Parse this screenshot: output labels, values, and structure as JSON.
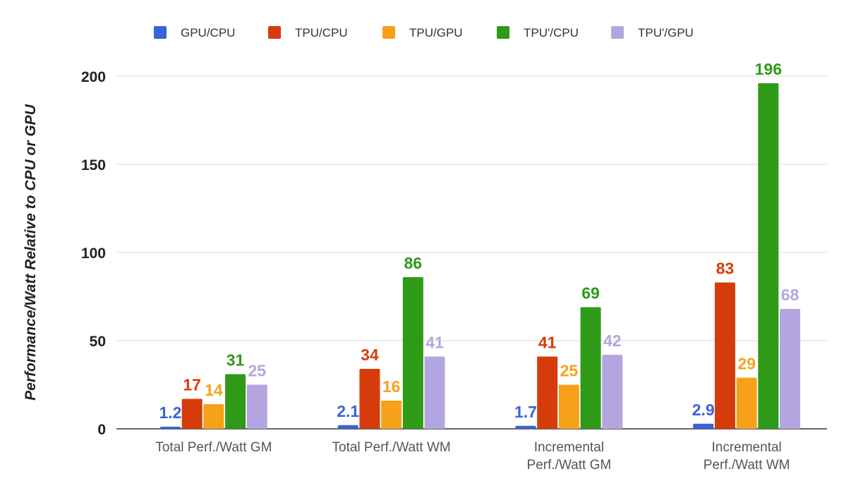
{
  "chart_data": {
    "type": "bar",
    "title": "",
    "xlabel": "",
    "ylabel": "Performance/Watt Relative to CPU or GPU",
    "ylim": [
      0,
      200
    ],
    "yticks": [
      "0",
      "50",
      "100",
      "150",
      "200"
    ],
    "grid": true,
    "legend_position": "top",
    "categories": [
      [
        "Total Perf./Watt GM"
      ],
      [
        "Total Perf./Watt WM"
      ],
      [
        "Incremental",
        "Perf./Watt GM"
      ],
      [
        "Incremental",
        "Perf./Watt WM"
      ]
    ],
    "series": [
      {
        "name": "GPU/CPU",
        "color": "#3b63d3",
        "values": [
          1.2,
          2.1,
          1.7,
          2.9
        ],
        "labels": [
          "1.2",
          "2.1",
          "1.7",
          "2.9"
        ]
      },
      {
        "name": "TPU/CPU",
        "color": "#d63c0b",
        "values": [
          17,
          34,
          41,
          83
        ],
        "labels": [
          "17",
          "34",
          "41",
          "83"
        ]
      },
      {
        "name": "TPU/GPU",
        "color": "#f7a11a",
        "values": [
          14,
          16,
          25,
          29
        ],
        "labels": [
          "14",
          "16",
          "25",
          "29"
        ]
      },
      {
        "name": "TPU'/CPU",
        "color": "#2e9a17",
        "values": [
          31,
          86,
          69,
          196
        ],
        "labels": [
          "31",
          "86",
          "69",
          "196"
        ]
      },
      {
        "name": "TPU'/GPU",
        "color": "#b3a6e0",
        "values": [
          25,
          41,
          42,
          68
        ],
        "labels": [
          "25",
          "41",
          "42",
          "68"
        ]
      }
    ]
  }
}
